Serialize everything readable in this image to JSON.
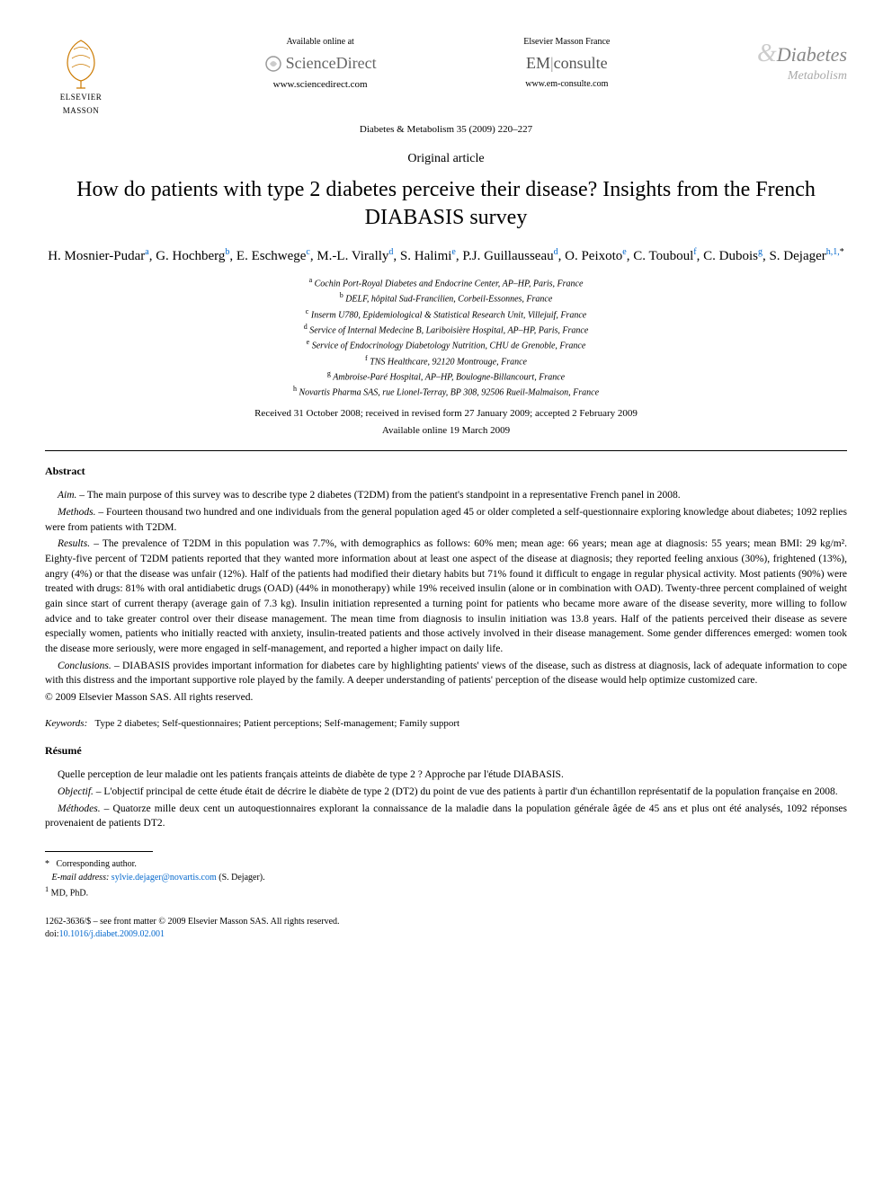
{
  "publisher": {
    "name_line1": "ELSEVIER",
    "name_line2": "MASSON"
  },
  "online": {
    "available_text": "Available online at",
    "brand": "ScienceDirect",
    "url": "www.sciencedirect.com"
  },
  "emconsulte": {
    "brand_top": "Elsevier Masson France",
    "brand_em": "EM",
    "brand_consulte": "consulte",
    "url": "www.em-consulte.com"
  },
  "journal_logo": {
    "title1": "Diabetes",
    "title2": "Metabolism"
  },
  "journal_ref": "Diabetes & Metabolism 35 (2009) 220–227",
  "article_type": "Original article",
  "title": "How do patients with type 2 diabetes perceive their disease? Insights from the French DIABASIS survey",
  "authors_html": "H. Mosnier-Pudar|a|, G. Hochberg|b|, E. Eschwege|c|, M.-L. Virally|d|, S. Halimi|e|, P.J. Guillausseau|d|, O. Peixoto|e|, C. Touboul|f|, C. Dubois|g|, S. Dejager|h,1,*",
  "affiliations": [
    {
      "sup": "a",
      "text": "Cochin Port-Royal Diabetes and Endocrine Center, AP–HP, Paris, France"
    },
    {
      "sup": "b",
      "text": "DELF, hôpital Sud-Francilien, Corbeil-Essonnes, France"
    },
    {
      "sup": "c",
      "text": "Inserm U780, Epidemiological & Statistical Research Unit, Villejuif, France"
    },
    {
      "sup": "d",
      "text": "Service of Internal Medecine B, Lariboisière Hospital, AP–HP, Paris, France"
    },
    {
      "sup": "e",
      "text": "Service of Endocrinology Diabetology Nutrition, CHU de Grenoble, France"
    },
    {
      "sup": "f",
      "text": "TNS Healthcare, 92120 Montrouge, France"
    },
    {
      "sup": "g",
      "text": "Ambroise-Paré Hospital, AP–HP, Boulogne-Billancourt, France"
    },
    {
      "sup": "h",
      "text": "Novartis Pharma SAS, rue Lionel-Terray, BP 308, 92506 Rueil-Malmaison, France"
    }
  ],
  "dates": "Received 31 October 2008; received in revised form 27 January 2009; accepted 2 February 2009",
  "available_online": "Available online 19 March 2009",
  "abstract": {
    "heading": "Abstract",
    "aim_label": "Aim. –",
    "aim": "The main purpose of this survey was to describe type 2 diabetes (T2DM) from the patient's standpoint in a representative French panel in 2008.",
    "methods_label": "Methods. –",
    "methods": "Fourteen thousand two hundred and one individuals from the general population aged 45 or older completed a self-questionnaire exploring knowledge about diabetes; 1092 replies were from patients with T2DM.",
    "results_label": "Results. –",
    "results": "The prevalence of T2DM in this population was 7.7%, with demographics as follows: 60% men; mean age: 66 years; mean age at diagnosis: 55 years; mean BMI: 29 kg/m². Eighty-five percent of T2DM patients reported that they wanted more information about at least one aspect of the disease at diagnosis; they reported feeling anxious (30%), frightened (13%), angry (4%) or that the disease was unfair (12%). Half of the patients had modified their dietary habits but 71% found it difficult to engage in regular physical activity. Most patients (90%) were treated with drugs: 81% with oral antidiabetic drugs (OAD) (44% in monotherapy) while 19% received insulin (alone or in combination with OAD). Twenty-three percent complained of weight gain since start of current therapy (average gain of 7.3 kg). Insulin initiation represented a turning point for patients who became more aware of the disease severity, more willing to follow advice and to take greater control over their disease management. The mean time from diagnosis to insulin initiation was 13.8 years. Half of the patients perceived their disease as severe especially women, patients who initially reacted with anxiety, insulin-treated patients and those actively involved in their disease management. Some gender differences emerged: women took the disease more seriously, were more engaged in self-management, and reported a higher impact on daily life.",
    "conclusions_label": "Conclusions. –",
    "conclusions": "DIABASIS provides important information for diabetes care by highlighting patients' views of the disease, such as distress at diagnosis, lack of adequate information to cope with this distress and the important supportive role played by the family. A deeper understanding of patients' perception of the disease would help optimize customized care.",
    "copyright": "© 2009 Elsevier Masson SAS. All rights reserved."
  },
  "keywords": {
    "label": "Keywords:",
    "text": "Type 2 diabetes; Self-questionnaires; Patient perceptions; Self-management; Family support"
  },
  "resume": {
    "heading": "Résumé",
    "lead": "Quelle perception de leur maladie ont les patients français atteints de diabète de type 2 ? Approche par l'étude DIABASIS.",
    "objectif_label": "Objectif. –",
    "objectif": "L'objectif principal de cette étude était de décrire le diabète de type 2 (DT2) du point de vue des patients à partir d'un échantillon représentatif de la population française en 2008.",
    "methodes_label": "Méthodes. –",
    "methodes": "Quatorze mille deux cent un autoquestionnaires explorant la connaissance de la maladie dans la population générale âgée de 45 ans et plus ont été analysés, 1092 réponses provenaient de patients DT2."
  },
  "footnotes": {
    "corresponding": "Corresponding author.",
    "email_label": "E-mail address:",
    "email": "sylvie.dejager@novartis.com",
    "email_name": "(S. Dejager).",
    "note1_sup": "1",
    "note1": "MD, PhD."
  },
  "footer": {
    "line1": "1262-3636/$ – see front matter © 2009 Elsevier Masson SAS. All rights reserved.",
    "doi_label": "doi:",
    "doi": "10.1016/j.diabet.2009.02.001"
  },
  "colors": {
    "link": "#0066cc",
    "text": "#000000",
    "grey_logo": "#888888"
  }
}
